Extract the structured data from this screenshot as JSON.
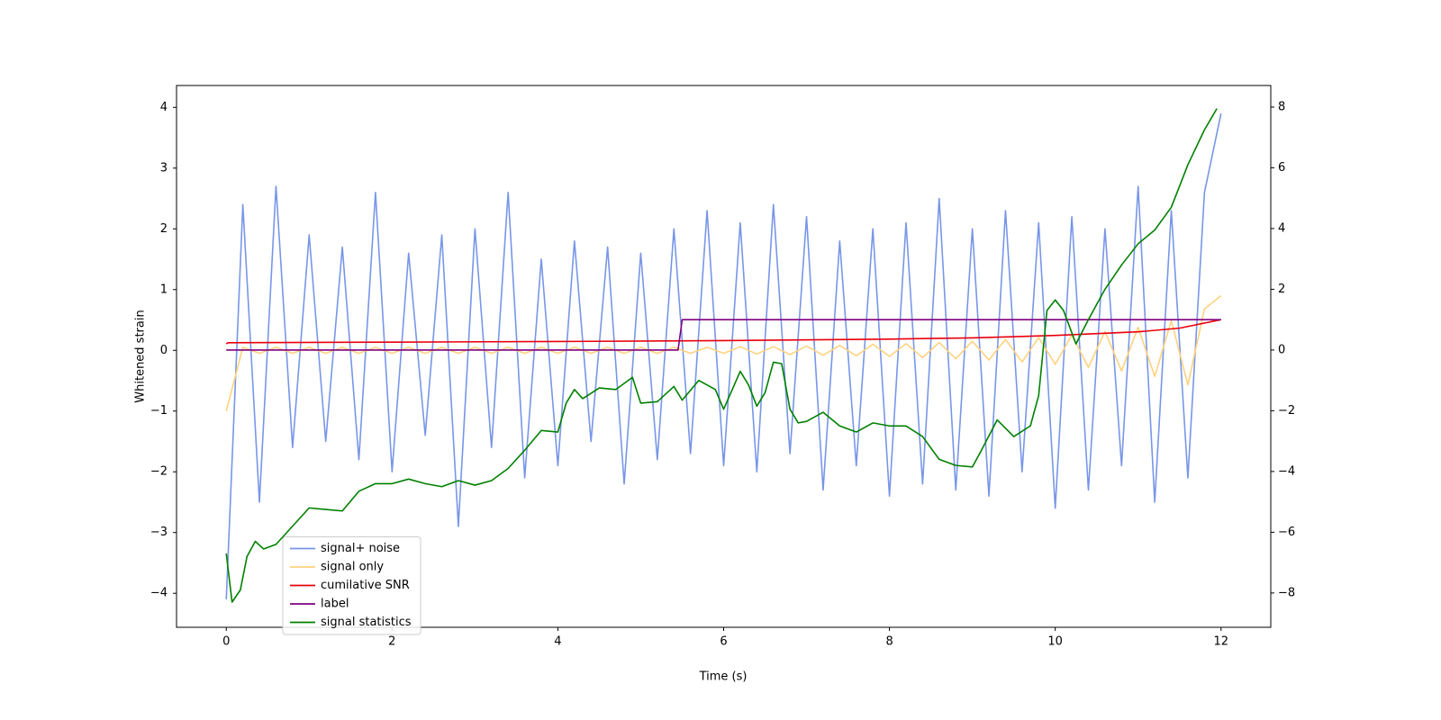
{
  "chart_data": {
    "type": "line",
    "xlabel": "Time (s)",
    "ylabel": "Whitened strain",
    "xlim": [
      -0.6,
      12.6
    ],
    "ylim": [
      -4.56,
      4.36
    ],
    "y2lim": [
      -9.13,
      8.71
    ],
    "xticks": [
      0,
      2,
      4,
      6,
      8,
      10,
      12
    ],
    "yticks": [
      {
        "value": -4,
        "label": "−4"
      },
      {
        "value": -3,
        "label": "−3"
      },
      {
        "value": -2,
        "label": "−2"
      },
      {
        "value": -1,
        "label": "−1"
      },
      0,
      1,
      2,
      3,
      4
    ],
    "y2ticks": [
      {
        "value": -8,
        "label": "−8"
      },
      {
        "value": -6,
        "label": "−6"
      },
      {
        "value": -4,
        "label": "−4"
      },
      {
        "value": -2,
        "label": "−2"
      },
      0,
      2,
      4,
      6,
      8
    ],
    "legend": "lower left",
    "series": [
      {
        "name": "signal+ noise",
        "color": "#7896e8",
        "x": [
          0,
          0.2,
          0.4,
          0.6,
          0.8,
          1,
          1.2,
          1.4,
          1.6,
          1.8,
          2,
          2.2,
          2.4,
          2.6,
          2.8,
          3,
          3.2,
          3.4,
          3.6,
          3.8,
          4,
          4.2,
          4.4,
          4.6,
          4.8,
          5,
          5.2,
          5.4,
          5.6,
          5.8,
          6,
          6.2,
          6.4,
          6.6,
          6.8,
          7,
          7.2,
          7.4,
          7.6,
          7.8,
          8,
          8.2,
          8.4,
          8.6,
          8.8,
          9,
          9.2,
          9.4,
          9.6,
          9.8,
          10,
          10.2,
          10.4,
          10.6,
          10.8,
          11,
          11.2,
          11.4,
          11.6,
          11.8,
          12
        ],
        "values": [
          -4.1,
          2.4,
          -2.5,
          2.7,
          -1.6,
          1.9,
          -1.5,
          1.7,
          -1.8,
          2.6,
          -2.0,
          1.6,
          -1.4,
          1.9,
          -2.9,
          2.0,
          -1.6,
          2.6,
          -2.1,
          1.5,
          -1.9,
          1.8,
          -1.5,
          1.7,
          -2.2,
          1.6,
          -1.8,
          2.0,
          -1.7,
          2.3,
          -1.9,
          2.1,
          -2.0,
          2.4,
          -1.7,
          2.2,
          -2.3,
          1.8,
          -1.9,
          2.0,
          -2.4,
          2.1,
          -2.2,
          2.5,
          -2.3,
          2.0,
          -2.4,
          2.3,
          -2.0,
          2.1,
          -2.6,
          2.2,
          -2.3,
          2.0,
          -1.9,
          2.7,
          -2.5,
          2.3,
          -2.1,
          2.6,
          3.9
        ]
      },
      {
        "name": "signal only",
        "color": "#ffd27f",
        "x": [
          0,
          0.2,
          0.4,
          0.6,
          0.8,
          1,
          1.2,
          1.4,
          1.6,
          1.8,
          2,
          2.2,
          2.4,
          2.6,
          2.8,
          3,
          3.2,
          3.4,
          3.6,
          3.8,
          4,
          4.2,
          4.4,
          4.6,
          4.8,
          5,
          5.2,
          5.4,
          5.6,
          5.8,
          6,
          6.2,
          6.4,
          6.6,
          6.8,
          7,
          7.2,
          7.4,
          7.6,
          7.8,
          8,
          8.2,
          8.4,
          8.6,
          8.8,
          9,
          9.2,
          9.4,
          9.6,
          9.8,
          10,
          10.2,
          10.4,
          10.6,
          10.8,
          11,
          11.2,
          11.4,
          11.6,
          11.8,
          12
        ],
        "values": [
          -1.0,
          0.05,
          -0.05,
          0.05,
          -0.05,
          0.05,
          -0.05,
          0.05,
          -0.05,
          0.05,
          -0.05,
          0.05,
          -0.05,
          0.05,
          -0.05,
          0.05,
          -0.05,
          0.05,
          -0.05,
          0.05,
          -0.05,
          0.05,
          -0.05,
          0.05,
          -0.05,
          0.05,
          -0.05,
          0.05,
          -0.05,
          0.05,
          -0.05,
          0.06,
          -0.06,
          0.06,
          -0.07,
          0.07,
          -0.08,
          0.08,
          -0.09,
          0.1,
          -0.1,
          0.11,
          -0.12,
          0.13,
          -0.14,
          0.15,
          -0.16,
          0.18,
          -0.19,
          0.21,
          -0.23,
          0.25,
          -0.28,
          0.31,
          -0.34,
          0.38,
          -0.43,
          0.49,
          -0.57,
          0.68,
          0.9
        ]
      },
      {
        "name": "cumilative SNR",
        "color": "#e8000b",
        "axis": "y2",
        "x": [
          0,
          0.02,
          2,
          4,
          6,
          8,
          9,
          10,
          11,
          11.5,
          12
        ],
        "values": [
          0.2,
          0.24,
          0.26,
          0.28,
          0.31,
          0.36,
          0.4,
          0.48,
          0.6,
          0.72,
          1.0
        ]
      },
      {
        "name": "label",
        "color": "#800080",
        "axis": "y2",
        "x": [
          0,
          5.45,
          5.5,
          12
        ],
        "values": [
          0,
          0,
          1,
          1
        ]
      },
      {
        "name": "signal statistics",
        "color": "#008000",
        "axis": "y2",
        "x": [
          0,
          0.07,
          0.17,
          0.25,
          0.35,
          0.45,
          0.6,
          0.8,
          1,
          1.2,
          1.4,
          1.6,
          1.8,
          2,
          2.2,
          2.4,
          2.6,
          2.8,
          3,
          3.2,
          3.4,
          3.6,
          3.8,
          4,
          4.1,
          4.2,
          4.3,
          4.5,
          4.7,
          4.9,
          5,
          5.2,
          5.4,
          5.5,
          5.7,
          5.9,
          6,
          6.2,
          6.3,
          6.4,
          6.5,
          6.6,
          6.7,
          6.8,
          6.9,
          7,
          7.2,
          7.4,
          7.6,
          7.8,
          8,
          8.2,
          8.4,
          8.6,
          8.8,
          9,
          9.1,
          9.3,
          9.5,
          9.7,
          9.8,
          9.9,
          10,
          10.1,
          10.25,
          10.4,
          10.6,
          10.8,
          11,
          11.2,
          11.4,
          11.6,
          11.8,
          11.95
        ],
        "values": [
          -6.7,
          -8.3,
          -7.9,
          -6.8,
          -6.3,
          -6.55,
          -6.4,
          -5.8,
          -5.2,
          -5.25,
          -5.3,
          -4.65,
          -4.4,
          -4.4,
          -4.25,
          -4.4,
          -4.5,
          -4.3,
          -4.45,
          -4.3,
          -3.9,
          -3.3,
          -2.65,
          -2.7,
          -1.75,
          -1.3,
          -1.6,
          -1.25,
          -1.3,
          -0.9,
          -1.75,
          -1.7,
          -1.2,
          -1.65,
          -1.0,
          -1.3,
          -1.95,
          -0.7,
          -1.15,
          -1.85,
          -1.4,
          -0.4,
          -0.45,
          -1.95,
          -2.4,
          -2.35,
          -2.05,
          -2.5,
          -2.7,
          -2.4,
          -2.5,
          -2.5,
          -2.85,
          -3.6,
          -3.8,
          -3.85,
          -3.35,
          -2.3,
          -2.85,
          -2.5,
          -1.5,
          1.3,
          1.65,
          1.3,
          0.2,
          1.0,
          2.0,
          2.8,
          3.5,
          3.95,
          4.7,
          6.1,
          7.25,
          7.95
        ]
      }
    ]
  }
}
